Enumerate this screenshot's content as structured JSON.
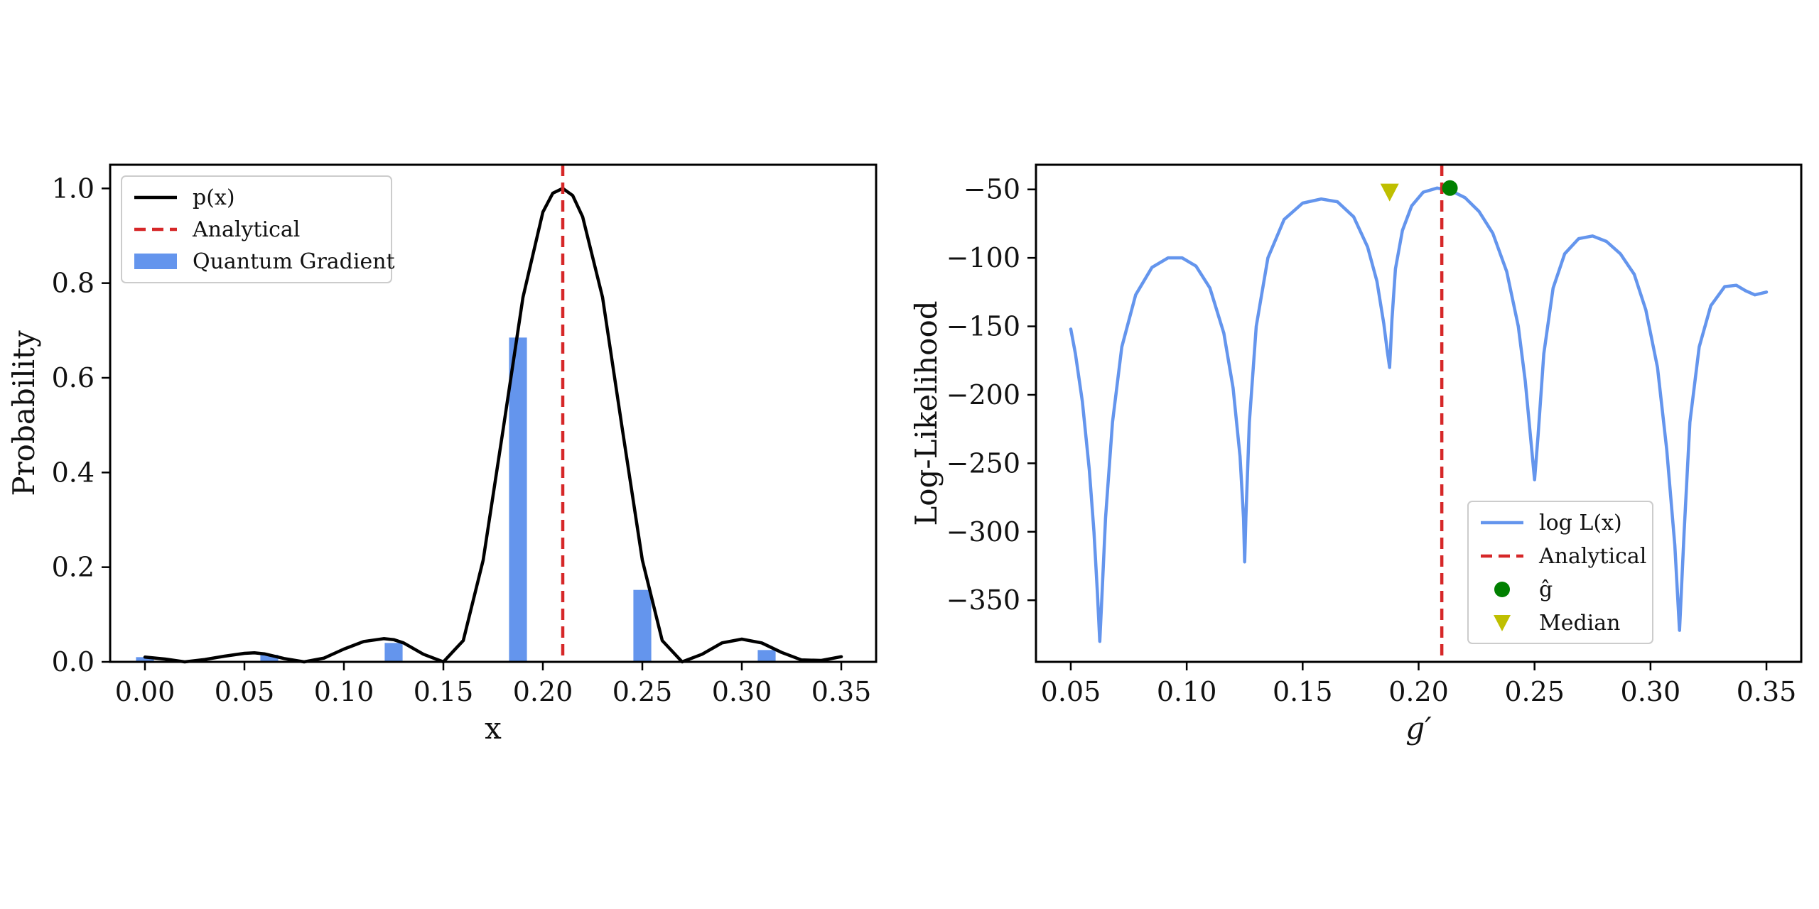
{
  "chart_data": [
    {
      "type": "bar",
      "xlabel": "x",
      "ylabel": "Probability",
      "xlim": [
        -0.0175,
        0.3675
      ],
      "ylim": [
        0.0,
        1.05
      ],
      "grid": false,
      "xticks": [
        "0.00",
        "0.05",
        "0.10",
        "0.15",
        "0.20",
        "0.25",
        "0.30",
        "0.35"
      ],
      "yticks": [
        "0.0",
        "0.2",
        "0.4",
        "0.6",
        "0.8",
        "1.0"
      ],
      "legend": {
        "position": "upper-left",
        "entries": [
          {
            "label": "p(x)",
            "style": "solid-line",
            "color": "#000000"
          },
          {
            "label": "Analytical",
            "style": "dashed-line",
            "color": "#d62728"
          },
          {
            "label": "Quantum Gradient",
            "style": "bar",
            "color": "#6495ed"
          }
        ]
      },
      "series": [
        {
          "name": "Quantum Gradient",
          "kind": "bar",
          "color": "#6495ed",
          "x": [
            0.0,
            0.0625,
            0.125,
            0.1875,
            0.25,
            0.3125
          ],
          "values": [
            0.01,
            0.015,
            0.04,
            0.685,
            0.152,
            0.025
          ]
        },
        {
          "name": "p(x)",
          "kind": "line",
          "color": "#000000",
          "x": [
            0.0,
            0.01,
            0.02,
            0.03,
            0.04,
            0.05,
            0.055,
            0.06,
            0.07,
            0.08,
            0.09,
            0.1,
            0.11,
            0.12,
            0.125,
            0.13,
            0.14,
            0.15,
            0.16,
            0.17,
            0.18,
            0.19,
            0.2,
            0.205,
            0.21,
            0.215,
            0.22,
            0.23,
            0.24,
            0.25,
            0.26,
            0.27,
            0.28,
            0.29,
            0.3,
            0.31,
            0.32,
            0.33,
            0.34,
            0.35
          ],
          "values": [
            0.01,
            0.006,
            0.0,
            0.005,
            0.012,
            0.018,
            0.019,
            0.017,
            0.007,
            0.0,
            0.008,
            0.027,
            0.043,
            0.049,
            0.047,
            0.04,
            0.016,
            0.0,
            0.045,
            0.215,
            0.49,
            0.77,
            0.95,
            0.99,
            1.0,
            0.985,
            0.94,
            0.77,
            0.49,
            0.215,
            0.045,
            0.0,
            0.016,
            0.04,
            0.048,
            0.04,
            0.02,
            0.004,
            0.003,
            0.011
          ]
        },
        {
          "name": "Analytical",
          "kind": "vline",
          "color": "#d62728",
          "x": 0.21
        }
      ]
    },
    {
      "type": "line",
      "xlabel": "g′",
      "ylabel": "Log-Likelihood",
      "xlim": [
        0.035,
        0.365
      ],
      "ylim": [
        -395,
        -32
      ],
      "grid": false,
      "xticks": [
        "0.05",
        "0.10",
        "0.15",
        "0.20",
        "0.25",
        "0.30",
        "0.35"
      ],
      "yticks": [
        "−50",
        "−100",
        "−150",
        "−200",
        "−250",
        "−300",
        "−350"
      ],
      "legend": {
        "position": "lower-right",
        "entries": [
          {
            "label": "log L(x)",
            "style": "solid-line",
            "color": "#6495ed"
          },
          {
            "label": "Analytical",
            "style": "dashed-line",
            "color": "#d62728"
          },
          {
            "label": "ĝ",
            "style": "circle-marker",
            "color": "#008000"
          },
          {
            "label": "Median",
            "style": "triangle-marker",
            "color": "#bfbf00"
          }
        ]
      },
      "series": [
        {
          "name": "log L(x)",
          "kind": "line",
          "color": "#6495ed",
          "x": [
            0.05,
            0.052,
            0.055,
            0.058,
            0.06,
            0.0615,
            0.0625,
            0.0635,
            0.065,
            0.068,
            0.072,
            0.078,
            0.085,
            0.092,
            0.098,
            0.104,
            0.11,
            0.116,
            0.12,
            0.123,
            0.1245,
            0.125,
            0.1255,
            0.127,
            0.13,
            0.135,
            0.142,
            0.15,
            0.158,
            0.165,
            0.172,
            0.178,
            0.182,
            0.185,
            0.1865,
            0.1875,
            0.1885,
            0.19,
            0.193,
            0.197,
            0.202,
            0.208,
            0.214,
            0.22,
            0.226,
            0.232,
            0.238,
            0.243,
            0.246,
            0.2485,
            0.25,
            0.2515,
            0.254,
            0.258,
            0.263,
            0.269,
            0.275,
            0.281,
            0.287,
            0.293,
            0.298,
            0.303,
            0.307,
            0.3105,
            0.3125,
            0.3145,
            0.317,
            0.321,
            0.326,
            0.332,
            0.337,
            0.341,
            0.345,
            0.35
          ],
          "values": [
            -152,
            -170,
            -205,
            -255,
            -300,
            -345,
            -380,
            -345,
            -290,
            -220,
            -165,
            -127,
            -107,
            -100,
            -100,
            -106,
            -122,
            -155,
            -195,
            -245,
            -290,
            -322,
            -290,
            -220,
            -150,
            -100,
            -72,
            -60,
            -57,
            -59,
            -70,
            -92,
            -117,
            -148,
            -168,
            -180,
            -145,
            -108,
            -80,
            -62,
            -52,
            -49,
            -51,
            -56,
            -66,
            -82,
            -110,
            -150,
            -190,
            -235,
            -262,
            -230,
            -170,
            -122,
            -97,
            -86,
            -84,
            -88,
            -97,
            -112,
            -138,
            -180,
            -240,
            -310,
            -372,
            -300,
            -220,
            -165,
            -135,
            -121,
            -120,
            -124,
            -127,
            -125
          ]
        },
        {
          "name": "Analytical",
          "kind": "vline",
          "color": "#d62728",
          "x": 0.21
        },
        {
          "name": "ĝ",
          "kind": "marker",
          "color": "#008000",
          "x": 0.2135,
          "y": -49
        },
        {
          "name": "Median",
          "kind": "marker",
          "color": "#bfbf00",
          "x": 0.1875,
          "y": -52
        }
      ]
    }
  ]
}
